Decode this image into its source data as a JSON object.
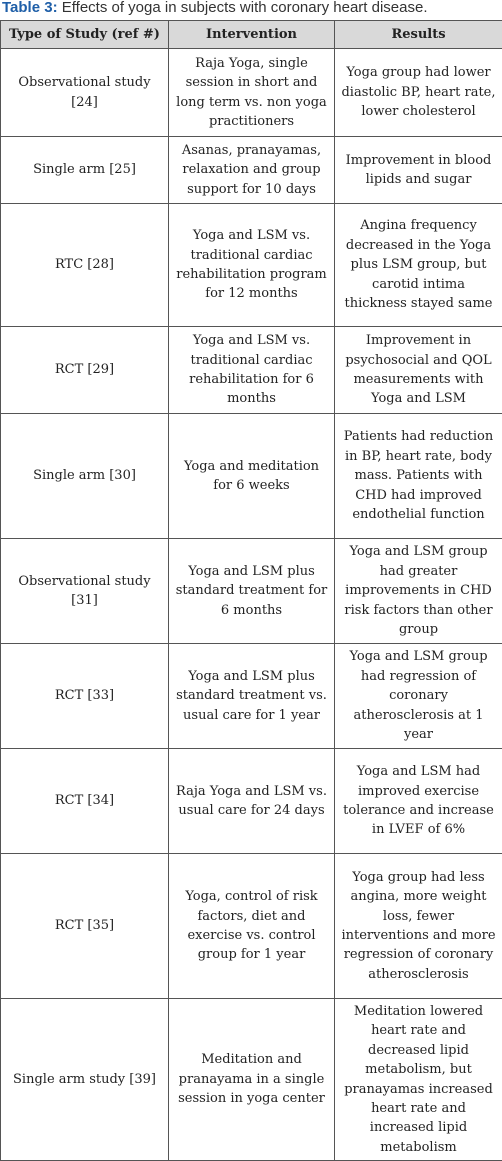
{
  "caption": {
    "label": "Table 3:",
    "text": " Effects of yoga in subjects with coronary heart disease."
  },
  "table": {
    "headers": [
      "Type of Study (ref #)",
      "Intervention",
      "Results"
    ],
    "rows": [
      {
        "type": "Observational study [24]",
        "intervention": "Raja Yoga, single session in short and long term vs. non yoga practitioners",
        "results": "Yoga group had lower diastolic BP, heart rate, lower cholesterol"
      },
      {
        "type": "Single arm [25]",
        "intervention": "Asanas, pranayamas, relaxation and group support for 10 days",
        "results": "Improvement in blood lipids and sugar"
      },
      {
        "type": "RTC [28]",
        "intervention": "Yoga and LSM vs. traditional cardiac rehabilitation program for 12 months",
        "results": "Angina frequency decreased in the Yoga plus LSM group, but carotid intima thickness stayed same"
      },
      {
        "type": "RCT [29]",
        "intervention": "Yoga and LSM vs. traditional cardiac rehabilitation for 6 months",
        "results": "Improvement in psychosocial and QOL measurements with Yoga and LSM"
      },
      {
        "type": "Single arm [30]",
        "intervention": "Yoga and meditation for 6 weeks",
        "results": "Patients had reduction in BP, heart rate, body mass. Patients with CHD had improved endothelial function"
      },
      {
        "type": "Observational study [31]",
        "intervention": "Yoga and LSM plus standard treatment for 6 months",
        "results": "Yoga and LSM group had greater improvements in CHD risk factors than other group"
      },
      {
        "type": "RCT [33]",
        "intervention": "Yoga and LSM plus standard treatment vs. usual care for 1 year",
        "results": "Yoga and LSM group had regression of coronary atherosclerosis at 1 year"
      },
      {
        "type": "RCT [34]",
        "intervention": "Raja Yoga and LSM vs. usual care for 24 days",
        "results": "Yoga and LSM had improved exercise tolerance and increase in LVEF of 6%"
      },
      {
        "type": "RCT [35]",
        "intervention": "Yoga, control of risk factors, diet and exercise vs. control group for 1 year",
        "results": "Yoga group had less angina, more weight loss, fewer interventions and more regression of coronary atherosclerosis"
      },
      {
        "type": "Single arm study [39]",
        "intervention": "Meditation and pranayama in a single session in yoga center",
        "results": "Meditation lowered heart rate and decreased lipid metabolism, but pranayamas increased heart rate and increased lipid metabolism"
      }
    ]
  }
}
